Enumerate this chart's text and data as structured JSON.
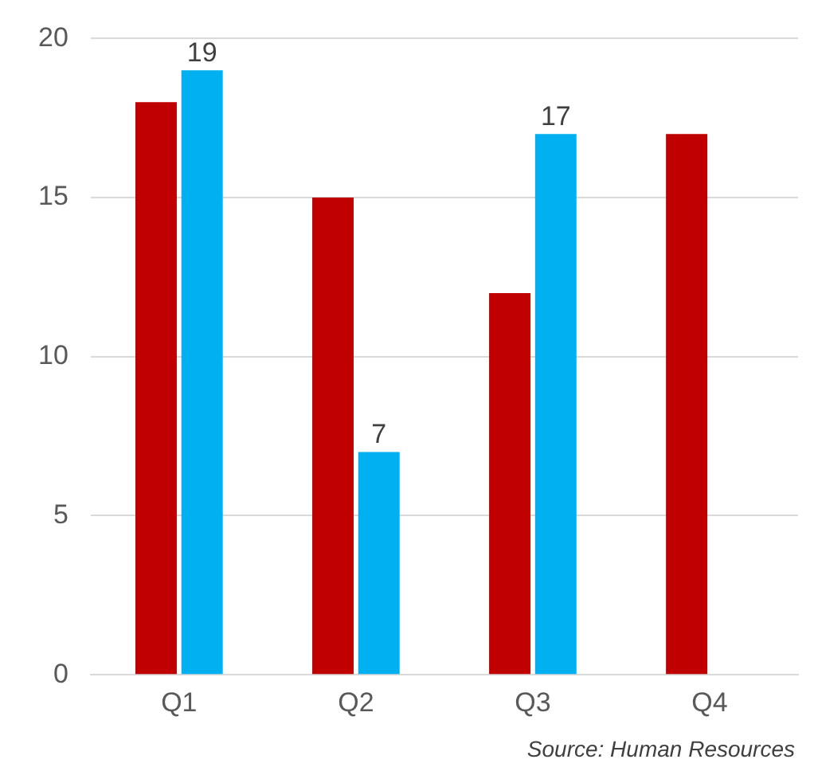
{
  "chart_data": {
    "type": "bar",
    "categories": [
      "Q1",
      "Q2",
      "Q3",
      "Q4"
    ],
    "series": [
      {
        "color": "#c00000",
        "values": [
          18,
          15,
          12,
          17
        ]
      },
      {
        "color": "#00b0f0",
        "values": [
          19,
          7,
          17,
          null
        ],
        "value_labels": [
          "19",
          "7",
          "17",
          null
        ]
      }
    ],
    "ylim": [
      0,
      20
    ],
    "yticks": [
      0,
      5,
      10,
      15,
      20
    ],
    "grid": "y",
    "legend": false,
    "annotations": [
      "Source: Human Resources"
    ]
  }
}
